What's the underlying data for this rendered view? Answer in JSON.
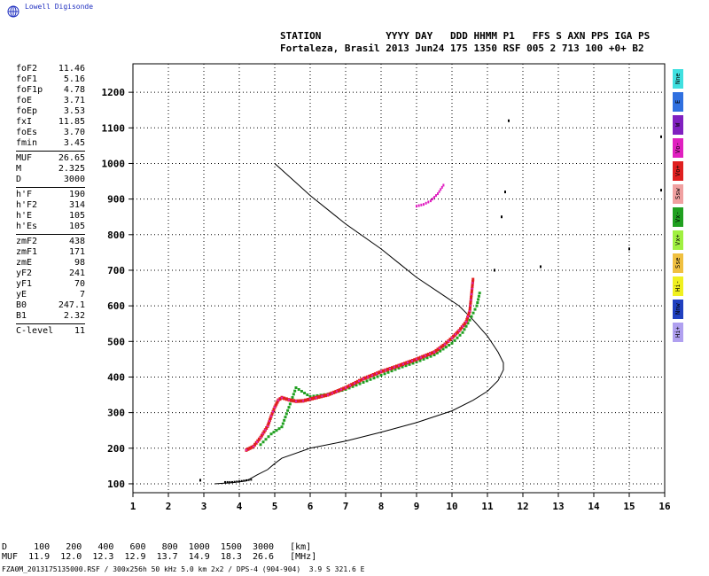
{
  "logo": {
    "text": "Lowell Digisonde"
  },
  "header": {
    "labels": "STATION YYYY DAY DDD HHMM P1 FFS S AXN PPS IGA PS",
    "values": "Fortaleza, Brasil 2013 Jun24 175 1350 RSF 005 2 713 100 +0+ B2"
  },
  "params": [
    {
      "label": "foF2",
      "value": "11.46"
    },
    {
      "label": "foF1",
      "value": "5.16"
    },
    {
      "label": "foF1p",
      "value": "4.78"
    },
    {
      "label": "foE",
      "value": "3.71"
    },
    {
      "label": "foEp",
      "value": "3.53"
    },
    {
      "label": "fxI",
      "value": "11.85"
    },
    {
      "label": "foEs",
      "value": "3.70"
    },
    {
      "label": "fmin",
      "value": "3.45"
    },
    {
      "sep": true
    },
    {
      "label": "MUF",
      "value": "26.65"
    },
    {
      "label": "M",
      "value": "2.325"
    },
    {
      "label": "D",
      "value": "3000"
    },
    {
      "sep": true
    },
    {
      "label": "h'F",
      "value": "190"
    },
    {
      "label": "h'F2",
      "value": "314"
    },
    {
      "label": "h'E",
      "value": "105"
    },
    {
      "label": "h'Es",
      "value": "105"
    },
    {
      "sep": true
    },
    {
      "label": "zmF2",
      "value": "438"
    },
    {
      "label": "zmF1",
      "value": "171"
    },
    {
      "label": "zmE",
      "value": "98"
    },
    {
      "label": "yF2",
      "value": "241"
    },
    {
      "label": "yF1",
      "value": "70"
    },
    {
      "label": "yE",
      "value": "7"
    },
    {
      "label": "B0",
      "value": "247.1"
    },
    {
      "label": "B1",
      "value": "2.32"
    },
    {
      "sep": true
    },
    {
      "label": "C-level",
      "value": "11"
    }
  ],
  "legend": [
    {
      "label": "Nne",
      "color": "#40e0e0"
    },
    {
      "label": "E",
      "color": "#3070e0"
    },
    {
      "label": "W",
      "color": "#8020c0"
    },
    {
      "label": "Vo-",
      "color": "#e020c0"
    },
    {
      "label": "Vo+",
      "color": "#e02020"
    },
    {
      "label": "Ssw",
      "color": "#f0a0a0"
    },
    {
      "label": "Vx-",
      "color": "#20a020"
    },
    {
      "label": "Vx+",
      "color": "#a0f040"
    },
    {
      "label": "Sse",
      "color": "#f0c040"
    },
    {
      "label": "Hi-",
      "color": "#f0f020"
    },
    {
      "label": "Nnw",
      "color": "#2040c0"
    },
    {
      "label": "Hi+",
      "color": "#b0a0f0"
    }
  ],
  "muf_table": {
    "row1": "D     100   200   400   600   800  1000  1500  3000   [km]",
    "row2": "MUF  11.9  12.0  12.3  12.9  13.7  14.9  18.3  26.6   [MHz]"
  },
  "footer": "FZA0M_2013175135000.RSF / 300x256h 50 kHz 5.0 km 2x2 / DPS-4 (904-904)  3.9 S 321.6 E",
  "chart_data": {
    "type": "scatter",
    "x_ticks": [
      1,
      2,
      3,
      4,
      5,
      6,
      7,
      8,
      9,
      10,
      11,
      12,
      13,
      14,
      15,
      16
    ],
    "y_ticks": [
      100,
      200,
      300,
      400,
      500,
      600,
      700,
      800,
      900,
      1000,
      1100,
      1200
    ],
    "xlim": [
      1,
      16
    ],
    "ylim": [
      75,
      1280
    ],
    "grid": true,
    "profile": {
      "x": [
        3.3,
        3.8,
        4.2,
        4.5,
        4.8,
        5.0,
        5.2,
        6.0,
        7.0,
        8.0,
        9.0,
        10.0,
        10.6,
        11.0,
        11.3,
        11.45,
        11.45,
        11.3,
        11.0,
        10.6,
        10.2,
        9.6,
        9.0,
        8.5,
        8.0,
        7.0,
        6.5,
        6.0,
        5.5,
        5.0
      ],
      "y": [
        100,
        103,
        108,
        125,
        140,
        157,
        172,
        200,
        220,
        245,
        272,
        305,
        335,
        360,
        390,
        420,
        440,
        470,
        515,
        560,
        600,
        640,
        680,
        720,
        760,
        830,
        870,
        910,
        955,
        1000
      ]
    },
    "o_trace": {
      "x": [
        4.2,
        4.4,
        4.6,
        4.8,
        4.9,
        5.0,
        5.1,
        5.2,
        5.4,
        5.6,
        5.8,
        6.0,
        6.5,
        7.0,
        7.5,
        8.0,
        8.5,
        9.0,
        9.5,
        9.8,
        10.0,
        10.2,
        10.4,
        10.5,
        10.6
      ],
      "y": [
        195,
        205,
        230,
        262,
        290,
        315,
        335,
        342,
        336,
        332,
        333,
        338,
        350,
        370,
        395,
        415,
        432,
        450,
        470,
        492,
        510,
        530,
        555,
        585,
        680
      ]
    },
    "x_trace": {
      "x": [
        4.6,
        4.9,
        5.2,
        5.6,
        6.0,
        6.5,
        7.0,
        7.5,
        8.0,
        8.5,
        9.0,
        9.5,
        10.0,
        10.3,
        10.5,
        10.7,
        10.8
      ],
      "y": [
        210,
        240,
        260,
        370,
        345,
        352,
        365,
        385,
        405,
        425,
        442,
        462,
        495,
        525,
        560,
        600,
        645
      ]
    },
    "es_trace": {
      "x": [
        3.6,
        3.8,
        4.0,
        4.2,
        4.4
      ],
      "y": [
        105,
        105,
        107,
        110,
        112
      ]
    },
    "spread_f": {
      "x": [
        9.0,
        9.2,
        9.4,
        9.6,
        9.8
      ],
      "y": [
        880,
        885,
        895,
        915,
        945
      ]
    },
    "isolated": {
      "x": [
        2.9,
        11.2,
        11.4,
        11.5,
        11.6,
        12.5,
        15.0,
        15.9,
        15.9
      ],
      "y": [
        110,
        700,
        850,
        920,
        1120,
        710,
        760,
        925,
        1075
      ]
    }
  }
}
